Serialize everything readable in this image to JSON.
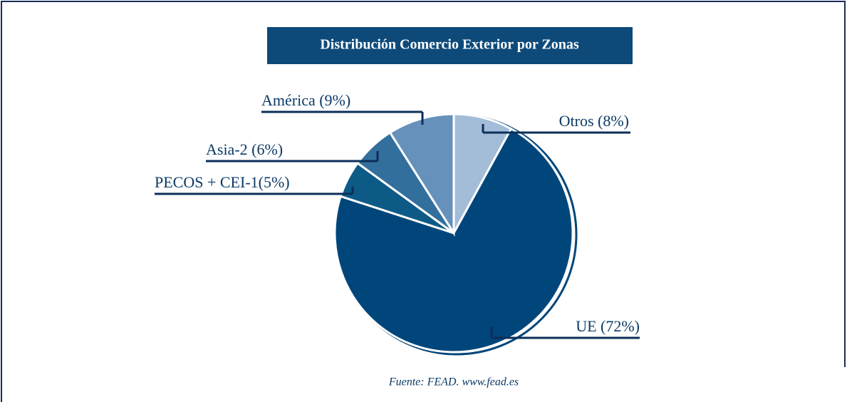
{
  "chart_data": {
    "type": "pie",
    "title": "Distribución Comercio Exterior por Zonas",
    "categories": [
      "Otros (8%)",
      "UE (72%)",
      "PECOS + CEI-1(5%)",
      "Asia-2 (6%)",
      "América (9%)"
    ],
    "values": [
      8,
      72,
      5,
      6,
      9
    ],
    "colors": [
      "#a3bdd8",
      "#00467a",
      "#0d5a87",
      "#336f9d",
      "#6591bb"
    ],
    "source": "Fuente: FEAD. www.fead.es"
  }
}
